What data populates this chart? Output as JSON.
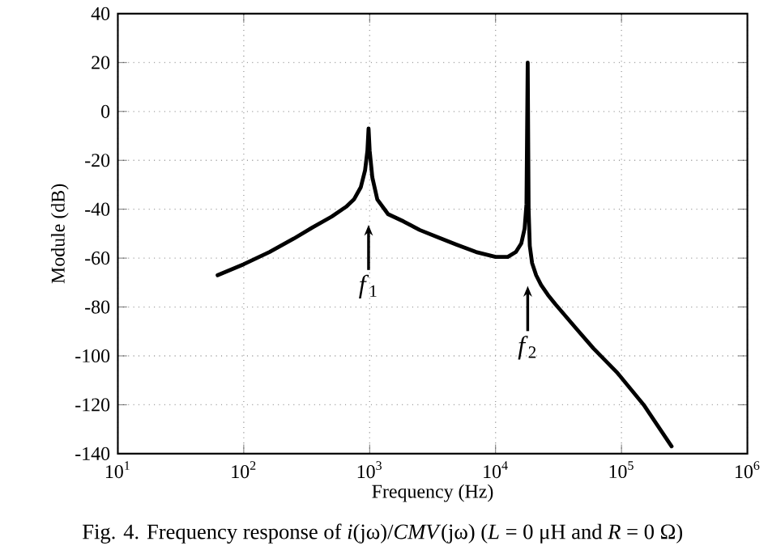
{
  "chart_data": {
    "type": "line",
    "xlabel": "Frequency (Hz)",
    "ylabel": "Module (dB)",
    "log": "x",
    "grid": true,
    "marker": "none",
    "line_style": "solid",
    "xlim": [
      10,
      1000000
    ],
    "ylim": [
      -140,
      40
    ],
    "xticks": [
      {
        "value": 10,
        "label": "10$^{1}$"
      },
      {
        "value": 100,
        "label": "10$^{2}$"
      },
      {
        "value": 1000,
        "label": "10$^{3}$"
      },
      {
        "value": 10000,
        "label": "10$^{4}$"
      },
      {
        "value": 100000,
        "label": "10$^{5}$"
      },
      {
        "value": 1000000,
        "label": "10$^{6}$"
      }
    ],
    "yticks": [
      -140,
      -120,
      -100,
      -80,
      -60,
      -40,
      -20,
      0,
      20,
      40
    ],
    "series": [
      {
        "color": "#000000",
        "x": [
          62,
          100,
          160,
          250,
          350,
          500,
          650,
          750,
          850,
          920,
          960,
          980,
          1000,
          1050,
          1150,
          1400,
          1860,
          2500,
          3500,
          4900,
          7000,
          10000,
          12500,
          14500,
          16000,
          17000,
          17600,
          18000,
          18300,
          18700,
          19500,
          21000,
          23000,
          26000,
          30000,
          44000,
          60000,
          93000,
          150000,
          250000
        ],
        "values": [
          -67,
          -62.5,
          -57.5,
          -52,
          -47.5,
          -43,
          -39,
          -36,
          -31,
          -24,
          -16,
          -7,
          -16,
          -27,
          -36,
          -42,
          -45,
          -48.5,
          -51.5,
          -54.5,
          -57.5,
          -59.5,
          -59.5,
          -57.5,
          -54,
          -48,
          -38,
          20,
          -40,
          -55,
          -62,
          -67,
          -71,
          -75,
          -79,
          -89,
          -97,
          -107,
          -120,
          -137
        ]
      }
    ],
    "annotations": [
      "*f*$_{1}$",
      "*f*$_{2}$",
      "Fig. 4. Frequency response of *i*(jω)/*CMV*(jω) (*L* = 0 μH and *R* = 0 Ω)"
    ]
  }
}
